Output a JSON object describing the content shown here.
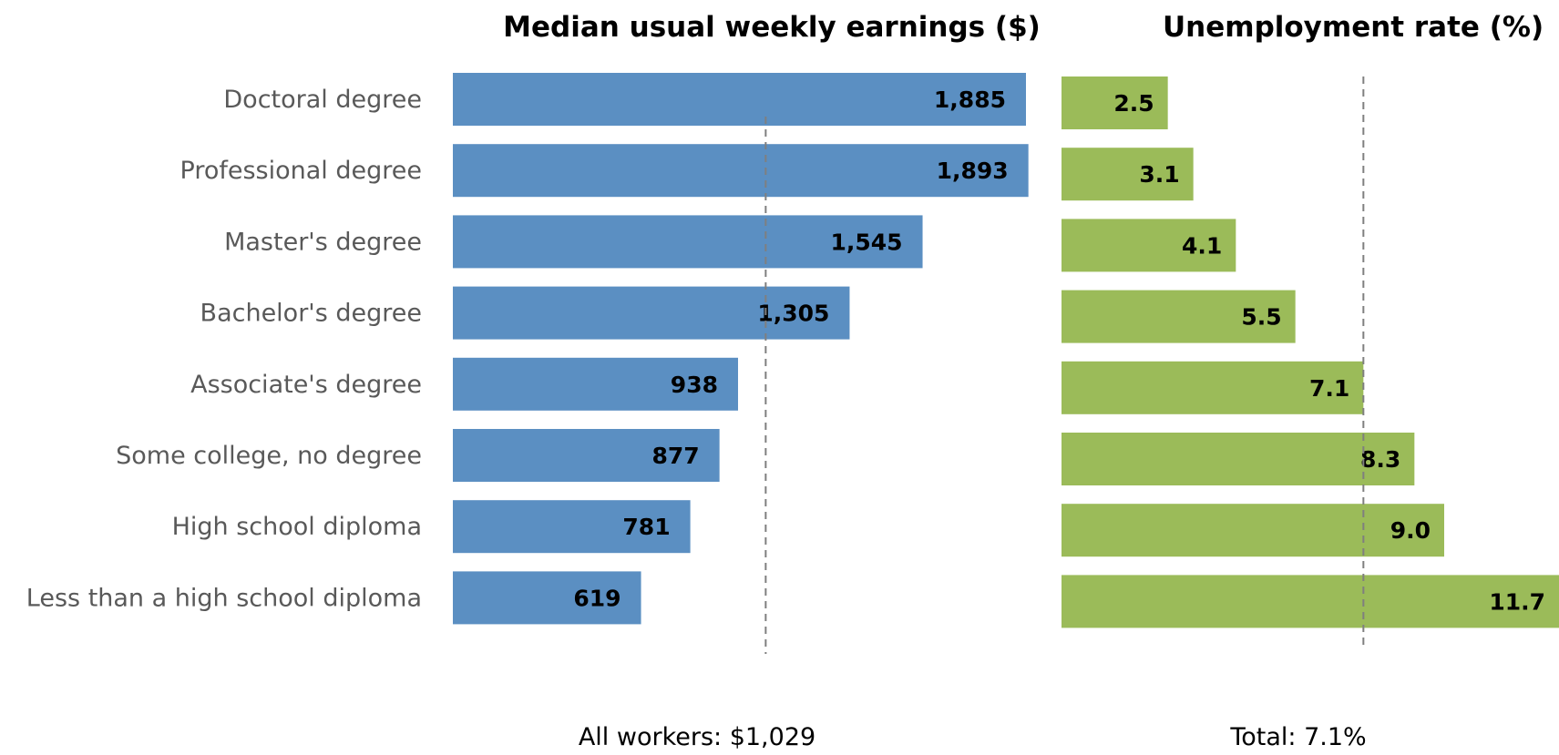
{
  "chart_data": [
    {
      "type": "bar",
      "orientation": "horizontal",
      "title": "Median usual weekly earnings ($)",
      "categories": [
        "Doctoral degree",
        "Professional degree",
        "Master's degree",
        "Bachelor's degree",
        "Associate's degree",
        "Some college, no degree",
        "High school diploma",
        "Less than a high school diploma"
      ],
      "values": [
        1885,
        1893,
        1545,
        1305,
        938,
        877,
        781,
        619
      ],
      "value_labels": [
        "1,885",
        "1,893",
        "1,545",
        "1,305",
        "938",
        "877",
        "781",
        "619"
      ],
      "xlim": [
        0,
        1900
      ],
      "color": "#5b8fc2",
      "reference_line": {
        "value": 1029,
        "label": "All workers: $1,029"
      },
      "grid": false,
      "legend": "none"
    },
    {
      "type": "bar",
      "orientation": "horizontal",
      "title": "Unemployment rate (%)",
      "categories": [
        "Doctoral degree",
        "Professional degree",
        "Master's degree",
        "Bachelor's degree",
        "Associate's degree",
        "Some college, no degree",
        "High school diploma",
        "Less than a high school diploma"
      ],
      "values": [
        2.5,
        3.1,
        4.1,
        5.5,
        7.1,
        8.3,
        9.0,
        11.7
      ],
      "value_labels": [
        "2.5",
        "3.1",
        "4.1",
        "5.5",
        "7.1",
        "8.3",
        "9.0",
        "11.7"
      ],
      "xlim": [
        0,
        11.7
      ],
      "color": "#9bbb59",
      "reference_line": {
        "value": 7.1,
        "label": "Total: 7.1%"
      },
      "grid": false,
      "legend": "none"
    }
  ]
}
